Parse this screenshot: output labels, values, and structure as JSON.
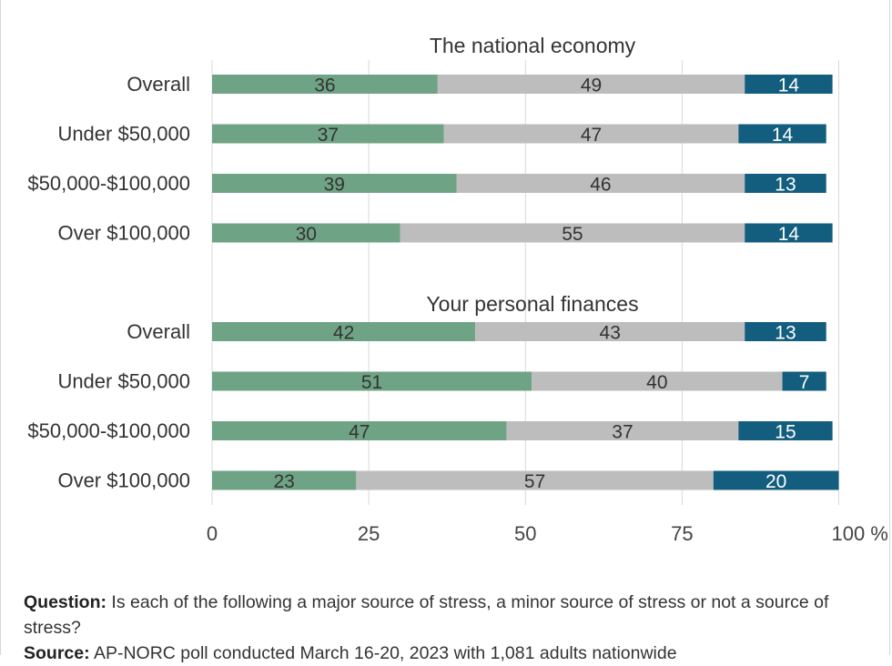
{
  "chart_data": {
    "type": "bar",
    "orientation": "horizontal",
    "stacked": true,
    "panels": [
      {
        "title": "The national economy",
        "categories": [
          "Overall",
          "Under $50,000",
          "$50,000-$100,000",
          "Over $100,000"
        ],
        "series": [
          {
            "values": [
              36,
              37,
              39,
              30
            ],
            "color": "#6fa385"
          },
          {
            "values": [
              49,
              47,
              46,
              55
            ],
            "color": "#bdbdbd"
          },
          {
            "values": [
              14,
              14,
              13,
              14
            ],
            "color": "#135d7e"
          }
        ]
      },
      {
        "title": "Your personal finances",
        "categories": [
          "Overall",
          "Under $50,000",
          "$50,000-$100,000",
          "Over $100,000"
        ],
        "series": [
          {
            "values": [
              42,
              51,
              47,
              23
            ],
            "color": "#6fa385"
          },
          {
            "values": [
              43,
              40,
              37,
              57
            ],
            "color": "#bdbdbd"
          },
          {
            "values": [
              13,
              7,
              15,
              20
            ],
            "color": "#135d7e"
          }
        ]
      }
    ],
    "xlim": [
      0,
      100
    ],
    "xticks": [
      0,
      25,
      50,
      75,
      100
    ],
    "xtick_labels": [
      "0",
      "25",
      "50",
      "75",
      "100 %"
    ],
    "grid": true,
    "label_colors": {
      "light_bar": "#333333",
      "dark_bar": "#ffffff"
    }
  },
  "footnote": {
    "question_label": "Question:",
    "question_text": " Is each of the following a major source of stress, a minor source of stress or not a source of stress?",
    "source_label": "Source:",
    "source_text": " AP-NORC poll conducted March 16-20, 2023 with 1,081 adults nationwide"
  }
}
